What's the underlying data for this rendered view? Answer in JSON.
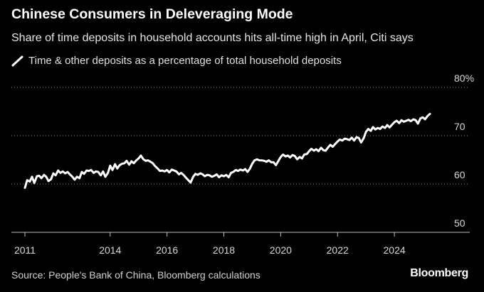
{
  "header": {
    "title": "Chinese Consumers in Deleveraging Mode",
    "subtitle": "Share of time deposits in household accounts hits all-time high in April, Citi says"
  },
  "footer": {
    "source": "Source: People's Bank of China, Bloomberg calculations",
    "brand": "Bloomberg"
  },
  "colors": {
    "background": "#000000",
    "line": "#ffffff",
    "grid": "#8c8c8c"
  },
  "chart_data": {
    "type": "line",
    "title": "Chinese Consumers in Deleveraging Mode",
    "subtitle": "Share of time deposits in household accounts hits all-time high in April, Citi says",
    "xlabel": "",
    "ylabel": "",
    "ylim": [
      50,
      80
    ],
    "xlim": [
      2011,
      2025.5
    ],
    "y_ticks": [
      50,
      60,
      70,
      80
    ],
    "y_tick_labels": [
      "50",
      "60",
      "70",
      "80%"
    ],
    "x_ticks": [
      2011,
      2014,
      2016,
      2018,
      2020,
      2022,
      2024
    ],
    "x_tick_labels": [
      "2011",
      "2014",
      "2016",
      "2018",
      "2020",
      "2022",
      "2024"
    ],
    "grid": true,
    "legend_position": "top-left",
    "series": [
      {
        "name": "Time & other deposits as a percentage of total household deposits",
        "x": [
          2011.0,
          2011.08,
          2011.17,
          2011.25,
          2011.33,
          2011.42,
          2011.5,
          2011.58,
          2011.67,
          2011.75,
          2011.83,
          2011.92,
          2012.0,
          2012.08,
          2012.17,
          2012.25,
          2012.33,
          2012.42,
          2012.5,
          2012.58,
          2012.67,
          2012.75,
          2012.83,
          2012.92,
          2013.0,
          2013.08,
          2013.17,
          2013.25,
          2013.33,
          2013.42,
          2013.5,
          2013.58,
          2013.67,
          2013.75,
          2013.83,
          2013.92,
          2014.0,
          2014.08,
          2014.17,
          2014.25,
          2014.33,
          2014.42,
          2014.5,
          2014.58,
          2014.67,
          2014.75,
          2014.83,
          2014.92,
          2015.0,
          2015.08,
          2015.17,
          2015.25,
          2015.33,
          2015.42,
          2015.5,
          2015.58,
          2015.67,
          2015.75,
          2015.83,
          2015.92,
          2016.0,
          2016.08,
          2016.17,
          2016.25,
          2016.33,
          2016.42,
          2016.5,
          2016.58,
          2016.67,
          2016.75,
          2016.83,
          2016.92,
          2017.0,
          2017.08,
          2017.17,
          2017.25,
          2017.33,
          2017.42,
          2017.5,
          2017.58,
          2017.67,
          2017.75,
          2017.83,
          2017.92,
          2018.0,
          2018.08,
          2018.17,
          2018.25,
          2018.33,
          2018.42,
          2018.5,
          2018.58,
          2018.67,
          2018.75,
          2018.83,
          2018.92,
          2019.0,
          2019.08,
          2019.17,
          2019.25,
          2019.33,
          2019.42,
          2019.5,
          2019.58,
          2019.67,
          2019.75,
          2019.83,
          2019.92,
          2020.0,
          2020.08,
          2020.17,
          2020.25,
          2020.33,
          2020.42,
          2020.5,
          2020.58,
          2020.67,
          2020.75,
          2020.83,
          2020.92,
          2021.0,
          2021.08,
          2021.17,
          2021.25,
          2021.33,
          2021.42,
          2021.5,
          2021.58,
          2021.67,
          2021.75,
          2021.83,
          2021.92,
          2022.0,
          2022.08,
          2022.17,
          2022.25,
          2022.33,
          2022.42,
          2022.5,
          2022.58,
          2022.67,
          2022.75,
          2022.83,
          2022.92,
          2023.0,
          2023.08,
          2023.17,
          2023.25,
          2023.33,
          2023.42,
          2023.5,
          2023.58,
          2023.67,
          2023.75,
          2023.83,
          2023.92,
          2024.0,
          2024.08,
          2024.17,
          2024.25,
          2024.33,
          2024.42,
          2024.5,
          2024.58,
          2024.67,
          2024.75,
          2024.83,
          2024.92,
          2025.0,
          2025.08,
          2025.17,
          2025.25
        ],
        "values": [
          59.2,
          60.8,
          60.5,
          61.5,
          60.2,
          61.6,
          61.7,
          61.2,
          61.9,
          61.5,
          60.6,
          61.0,
          62.2,
          61.8,
          62.8,
          62.3,
          62.6,
          62.2,
          62.5,
          62.0,
          61.5,
          60.9,
          61.5,
          61.2,
          62.5,
          62.1,
          62.8,
          62.7,
          62.9,
          62.3,
          62.6,
          62.5,
          61.8,
          62.6,
          61.5,
          62.3,
          63.8,
          62.9,
          64.1,
          63.2,
          63.9,
          64.2,
          64.3,
          64.8,
          64.0,
          64.7,
          64.3,
          64.9,
          65.3,
          65.9,
          65.1,
          64.8,
          64.9,
          64.6,
          64.3,
          63.7,
          63.2,
          62.7,
          62.8,
          62.6,
          62.9,
          62.4,
          63.0,
          62.8,
          62.6,
          62.0,
          62.3,
          61.9,
          61.3,
          60.8,
          60.3,
          61.5,
          62.1,
          61.9,
          62.2,
          62.0,
          61.6,
          61.9,
          61.8,
          61.5,
          61.7,
          62.0,
          61.4,
          61.8,
          61.6,
          61.9,
          61.4,
          62.3,
          62.5,
          62.9,
          62.7,
          63.0,
          62.8,
          63.1,
          62.5,
          63.2,
          64.2,
          64.9,
          65.1,
          64.9,
          64.9,
          64.8,
          64.6,
          64.9,
          64.5,
          64.5,
          63.9,
          64.8,
          65.6,
          66.1,
          65.7,
          65.9,
          65.5,
          66.0,
          65.8,
          65.1,
          65.6,
          65.3,
          66.1,
          66.2,
          66.8,
          67.3,
          66.9,
          67.2,
          66.8,
          67.5,
          67.0,
          66.9,
          67.6,
          68.1,
          67.7,
          68.3,
          68.8,
          69.2,
          69.0,
          69.4,
          69.3,
          69.1,
          69.6,
          69.0,
          69.7,
          69.5,
          68.6,
          69.5,
          70.8,
          71.4,
          71.0,
          71.8,
          71.3,
          71.6,
          71.4,
          71.9,
          71.6,
          72.2,
          71.7,
          72.3,
          72.8,
          73.1,
          72.6,
          73.2,
          72.9,
          73.1,
          73.3,
          73.0,
          73.4,
          73.2,
          72.5,
          73.6,
          73.8,
          73.4,
          74.1,
          74.5
        ]
      }
    ]
  }
}
